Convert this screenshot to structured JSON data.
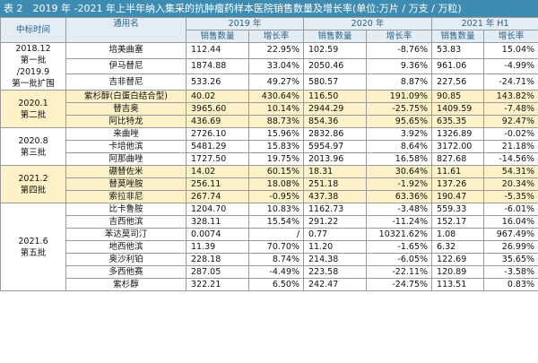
{
  "title": "表 2　2019 年 -2021 年上半年纳入集采的抗肿瘤药样本医院销售数量及增长率(单位:万片 / 万支 / 万粒)",
  "header": {
    "batch": "中标时间",
    "name": "通用名",
    "years": [
      "2019 年",
      "2020 年",
      "2021 年 H1"
    ],
    "qty": "销售数量",
    "growth": "增长率"
  },
  "groups": [
    {
      "batch": [
        "2018.12",
        "第一批",
        "/2019.9",
        "第一批扩围"
      ],
      "highlight": false,
      "rows": [
        {
          "name": "培美曲塞",
          "v": [
            "112.44",
            "22.95%",
            "102.59",
            "-8.76%",
            "53.83",
            "15.04%"
          ]
        },
        {
          "name": "伊马替尼",
          "v": [
            "1874.88",
            "33.04%",
            "2050.46",
            "9.36%",
            "961.06",
            "-4.99%"
          ]
        },
        {
          "name": "吉非替尼",
          "v": [
            "533.26",
            "49.27%",
            "580.57",
            "8.87%",
            "227.56",
            "-24.71%"
          ]
        }
      ]
    },
    {
      "batch": [
        "2020.1",
        "第二批"
      ],
      "highlight": true,
      "rows": [
        {
          "name": "紫杉醇(白蛋白结合型)",
          "v": [
            "40.02",
            "430.64%",
            "116.50",
            "191.09%",
            "90.85",
            "143.82%"
          ]
        },
        {
          "name": "替吉奥",
          "v": [
            "3965.60",
            "10.14%",
            "2944.29",
            "-25.75%",
            "1409.59",
            "-7.48%"
          ]
        },
        {
          "name": "阿比特龙",
          "v": [
            "436.69",
            "88.73%",
            "854.36",
            "95.65%",
            "635.35",
            "92.47%"
          ]
        }
      ]
    },
    {
      "batch": [
        "2020.8",
        "第三批"
      ],
      "highlight": false,
      "rows": [
        {
          "name": "来曲唑",
          "v": [
            "2726.10",
            "15.96%",
            "2832.86",
            "3.92%",
            "1326.89",
            "-0.02%"
          ]
        },
        {
          "name": "卡培他滨",
          "v": [
            "5481.29",
            "15.83%",
            "5954.97",
            "8.64%",
            "3172.00",
            "21.18%"
          ]
        },
        {
          "name": "阿那曲唑",
          "v": [
            "1727.50",
            "19.75%",
            "2013.96",
            "16.58%",
            "827.68",
            "-14.56%"
          ]
        }
      ]
    },
    {
      "batch": [
        "2021.2",
        "第四批"
      ],
      "highlight": true,
      "rows": [
        {
          "name": "硼替佐米",
          "v": [
            "14.02",
            "60.15%",
            "18.31",
            "30.64%",
            "11.61",
            "54.31%"
          ]
        },
        {
          "name": "替莫唑胺",
          "v": [
            "256.11",
            "18.08%",
            "251.18",
            "-1.92%",
            "137.26",
            "20.34%"
          ]
        },
        {
          "name": "索拉非尼",
          "v": [
            "267.74",
            "-0.95%",
            "437.38",
            "63.36%",
            "190.47",
            "-5.35%"
          ]
        }
      ]
    },
    {
      "batch": [
        "2021.6",
        "第五批"
      ],
      "highlight": false,
      "rows": [
        {
          "name": "比卡鲁胺",
          "v": [
            "1204.70",
            "10.83%",
            "1162.73",
            "-3.48%",
            "559.33",
            "-6.01%"
          ]
        },
        {
          "name": "吉西他滨",
          "v": [
            "328.11",
            "15.54%",
            "291.22",
            "-11.24%",
            "152.17",
            "16.04%"
          ]
        },
        {
          "name": "苯达莫司汀",
          "v": [
            "0.0074",
            "/",
            "0.77",
            "10321.62%",
            "1.08",
            "967.49%"
          ]
        },
        {
          "name": "地西他滨",
          "v": [
            "11.39",
            "70.70%",
            "11.20",
            "-1.65%",
            "6.32",
            "26.99%"
          ]
        },
        {
          "name": "奥沙利铂",
          "v": [
            "228.18",
            "8.74%",
            "214.38",
            "-6.05%",
            "122.69",
            "35.65%"
          ]
        },
        {
          "name": "多西他赛",
          "v": [
            "287.05",
            "-4.49%",
            "223.58",
            "-22.11%",
            "120.89",
            "-3.58%"
          ]
        },
        {
          "name": "紫杉醇",
          "v": [
            "322.21",
            "6.50%",
            "242.47",
            "-24.75%",
            "113.51",
            "0.83%"
          ]
        }
      ]
    }
  ],
  "colors": {
    "title_bg": "#3f8cb2",
    "header_bg": "#e3edf5",
    "highlight_bg": "#fdf1c8"
  }
}
